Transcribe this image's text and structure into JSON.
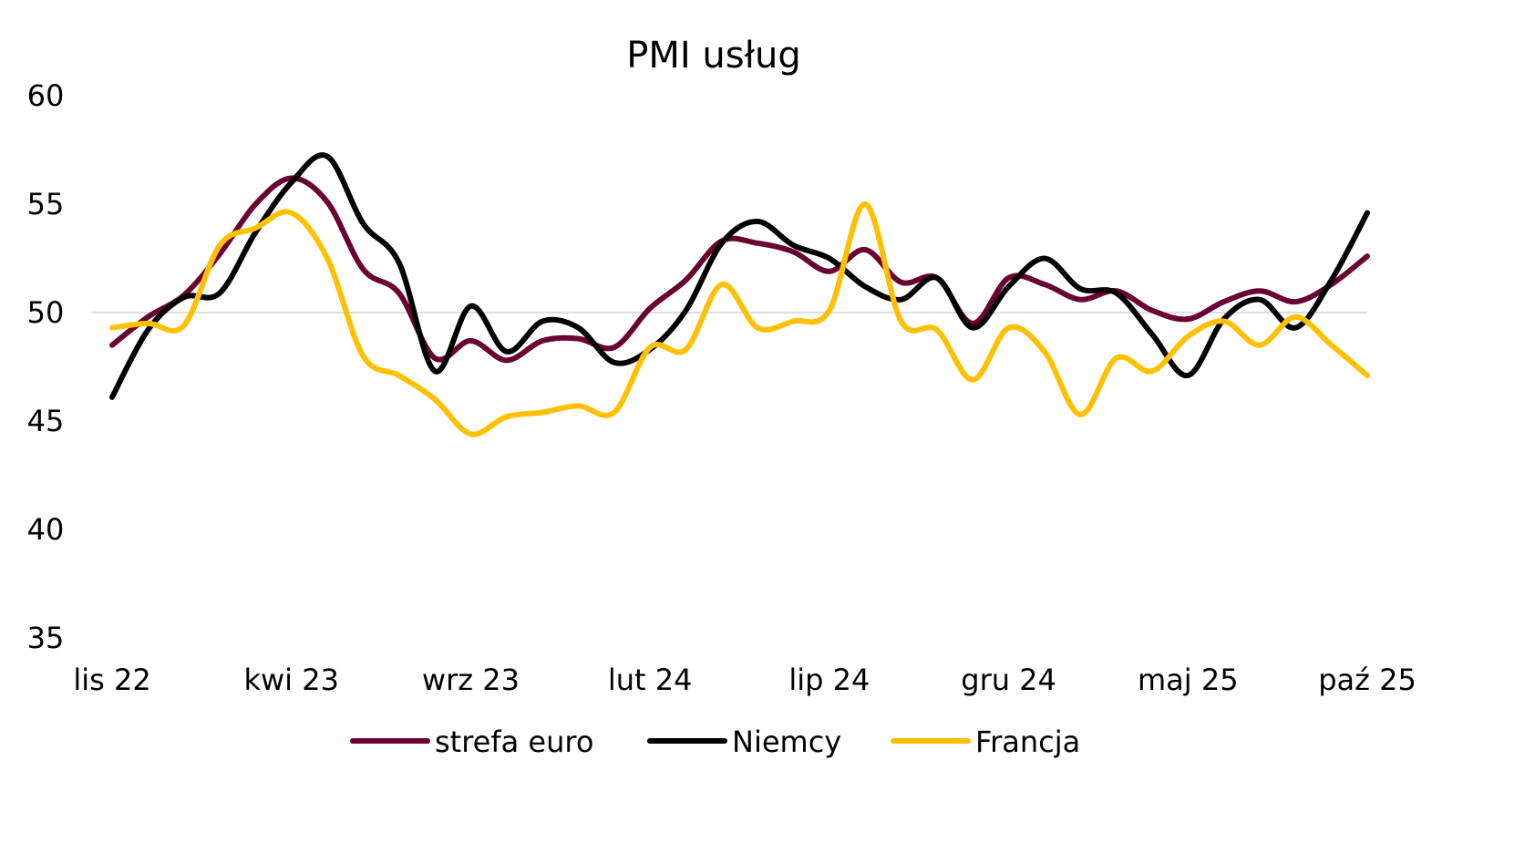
{
  "chart_data": {
    "type": "line",
    "title": "PMI usług",
    "xlabel": "",
    "ylabel": "",
    "ylim": [
      35,
      60
    ],
    "yticks": [
      35,
      40,
      45,
      50,
      55,
      60
    ],
    "reference_line": 50,
    "grid": false,
    "legend_position": "bottom",
    "x_tick_labels": [
      "lis 22",
      "kwi 23",
      "wrz 23",
      "lut 24",
      "lip 24",
      "gru 24",
      "maj 25",
      "paź 25"
    ],
    "x": [
      "2022-11",
      "2022-12",
      "2023-01",
      "2023-02",
      "2023-03",
      "2023-04",
      "2023-05",
      "2023-06",
      "2023-07",
      "2023-08",
      "2023-09",
      "2023-10",
      "2023-11",
      "2023-12",
      "2024-01",
      "2024-02",
      "2024-03",
      "2024-04",
      "2024-05",
      "2024-06",
      "2024-07",
      "2024-08",
      "2024-09",
      "2024-10",
      "2024-11",
      "2024-12",
      "2025-01",
      "2025-02",
      "2025-03",
      "2025-04",
      "2025-05",
      "2025-06",
      "2025-07",
      "2025-08",
      "2025-09",
      "2025-10"
    ],
    "series": [
      {
        "name": "strefa euro",
        "color": "#6B0032",
        "values": [
          48.5,
          49.8,
          50.8,
          52.7,
          55.0,
          56.2,
          55.1,
          52.0,
          50.9,
          47.9,
          48.7,
          47.8,
          48.7,
          48.8,
          48.4,
          50.2,
          51.5,
          53.3,
          53.2,
          52.8,
          51.9,
          52.9,
          51.4,
          51.6,
          49.5,
          51.6,
          51.3,
          50.6,
          51.0,
          50.1,
          49.7,
          50.5,
          51.0,
          50.5,
          51.3,
          52.6
        ]
      },
      {
        "name": "Niemcy",
        "color": "#000000",
        "values": [
          46.1,
          49.2,
          50.7,
          50.9,
          53.7,
          56.0,
          57.2,
          54.1,
          52.3,
          47.3,
          50.3,
          48.2,
          49.6,
          49.3,
          47.7,
          48.3,
          50.1,
          53.2,
          54.2,
          53.1,
          52.5,
          51.2,
          50.6,
          51.6,
          49.3,
          51.2,
          52.5,
          51.1,
          50.9,
          49.0,
          47.1,
          49.7,
          50.6,
          49.3,
          51.5,
          54.6
        ]
      },
      {
        "name": "Francja",
        "color": "#FFC000",
        "values": [
          49.3,
          49.5,
          49.4,
          53.1,
          53.9,
          54.6,
          52.5,
          48.0,
          47.1,
          46.0,
          44.4,
          45.2,
          45.4,
          45.7,
          45.4,
          48.4,
          48.3,
          51.3,
          49.3,
          49.6,
          50.1,
          55.0,
          49.6,
          49.2,
          46.9,
          49.3,
          48.2,
          45.3,
          47.9,
          47.3,
          48.9,
          49.6,
          48.5,
          49.8,
          48.5,
          47.1
        ]
      }
    ]
  }
}
